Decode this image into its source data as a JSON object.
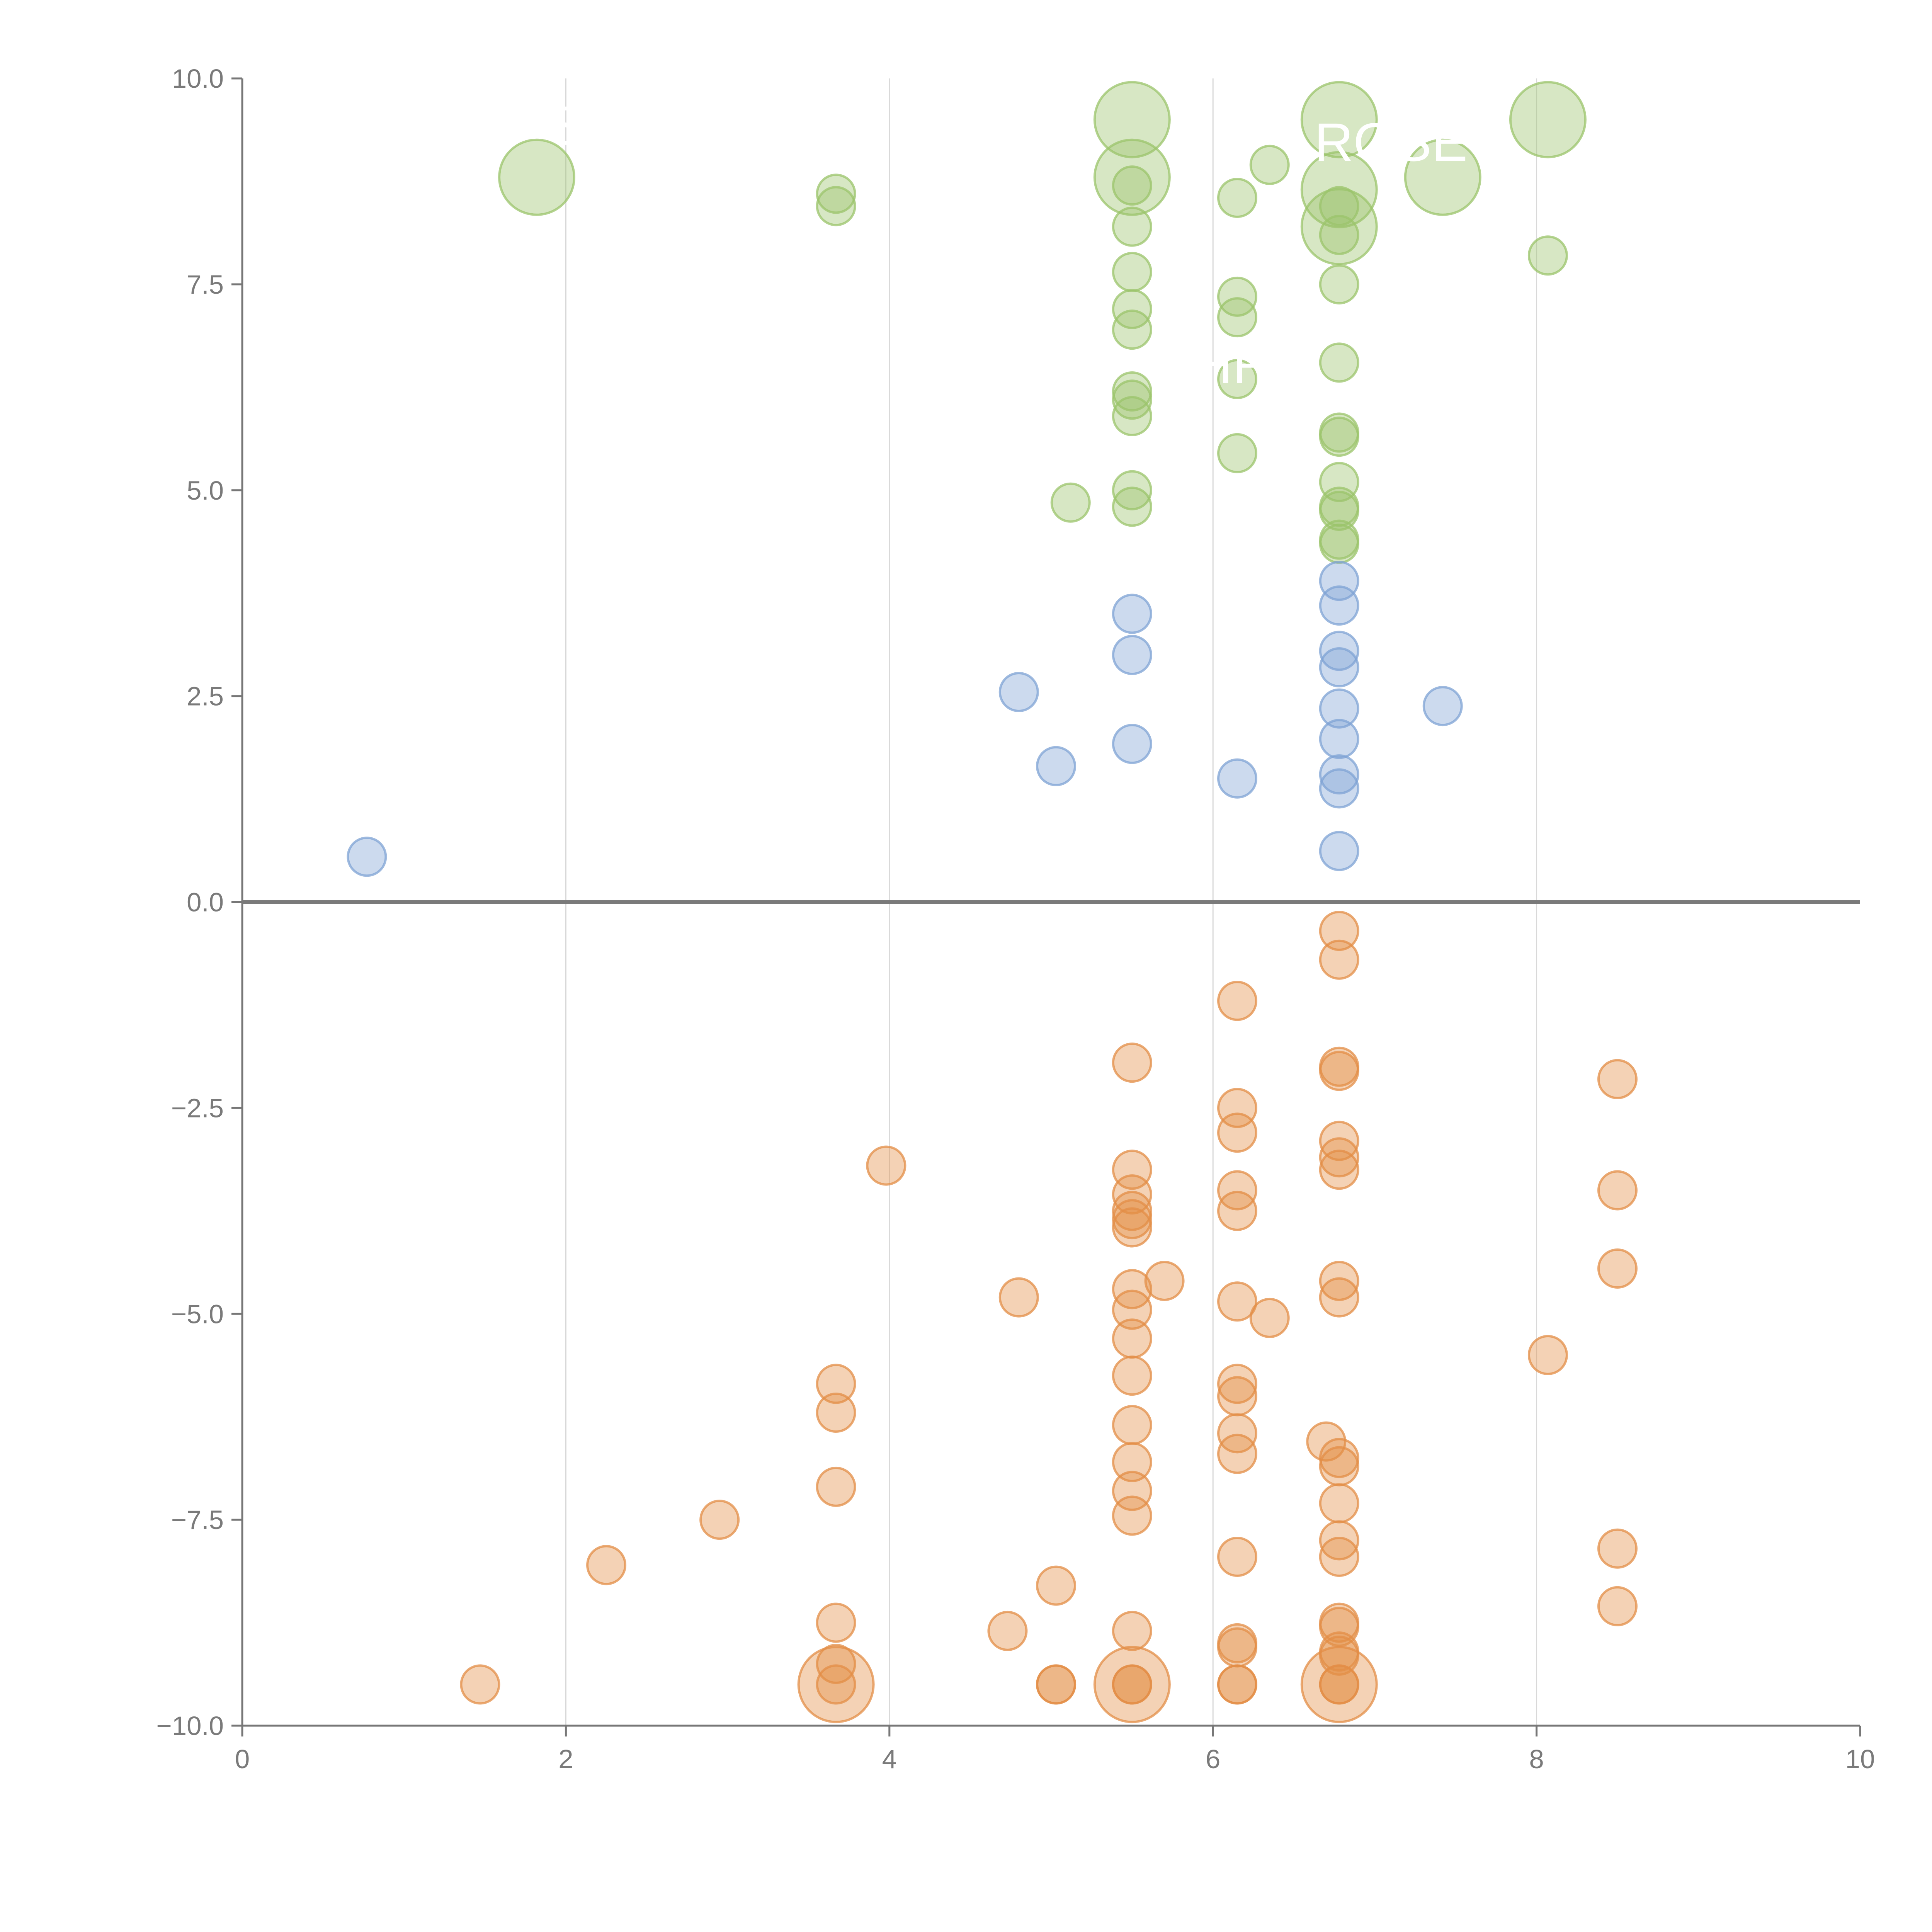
{
  "colors": {
    "green": "#9bc46b",
    "blue": "#7fa3d4",
    "orange": "#e38e47",
    "axis": "#777777",
    "grid": "#d9d9d9",
    "zero_line": "#7a7a7a",
    "tick_text": "#7a7a7a"
  },
  "chart_data": {
    "type": "scatter",
    "title": "",
    "xlabel": "",
    "ylabel": "",
    "xlim": [
      0,
      10
    ],
    "ylim": [
      -10,
      10
    ],
    "x_ticks": [
      "0",
      "2",
      "4",
      "6",
      "8",
      "10"
    ],
    "y_ticks": [
      "10.0",
      "7.5",
      "5.0",
      "2.5",
      "0.0",
      "−2.5",
      "−5.0",
      "−7.5",
      "−10.0"
    ],
    "x_grid": [
      2,
      4,
      6,
      8
    ],
    "overlay_labels": [
      {
        "text": "S",
        "x": 2.0,
        "y": 9.2
      },
      {
        "text": "ROSE",
        "x": 7.1,
        "y": 9.0
      },
      {
        "text": "CHR",
        "x": 6.0,
        "y": 6.3
      }
    ],
    "series": [
      {
        "name": "green",
        "color_key": "green",
        "points": [
          [
            1.82,
            8.8,
            2
          ],
          [
            3.67,
            8.6,
            1
          ],
          [
            3.67,
            8.45,
            1
          ],
          [
            5.5,
            9.5,
            2
          ],
          [
            5.5,
            8.8,
            2
          ],
          [
            5.5,
            8.7,
            1
          ],
          [
            5.5,
            8.2,
            1
          ],
          [
            5.5,
            7.65,
            1
          ],
          [
            5.5,
            7.2,
            1
          ],
          [
            5.5,
            6.95,
            1
          ],
          [
            5.5,
            6.2,
            1
          ],
          [
            5.5,
            6.1,
            1
          ],
          [
            5.5,
            5.9,
            1
          ],
          [
            5.5,
            5.0,
            1
          ],
          [
            5.5,
            4.8,
            1
          ],
          [
            5.12,
            4.85,
            1
          ],
          [
            6.15,
            8.55,
            1
          ],
          [
            6.15,
            7.35,
            1
          ],
          [
            6.15,
            7.1,
            1
          ],
          [
            6.15,
            6.35,
            1
          ],
          [
            6.15,
            5.45,
            1
          ],
          [
            6.35,
            8.95,
            1
          ],
          [
            6.78,
            9.5,
            2
          ],
          [
            6.78,
            8.65,
            2
          ],
          [
            6.78,
            8.45,
            1
          ],
          [
            6.78,
            8.2,
            2
          ],
          [
            6.78,
            8.1,
            1
          ],
          [
            6.78,
            7.5,
            1
          ],
          [
            6.78,
            6.55,
            1
          ],
          [
            6.78,
            5.7,
            1
          ],
          [
            6.78,
            5.65,
            1
          ],
          [
            6.78,
            5.1,
            1
          ],
          [
            6.78,
            4.8,
            1
          ],
          [
            6.78,
            4.75,
            1
          ],
          [
            6.78,
            4.4,
            1
          ],
          [
            6.78,
            4.35,
            1
          ],
          [
            7.42,
            8.8,
            2
          ],
          [
            8.07,
            9.5,
            2
          ],
          [
            8.07,
            7.85,
            1
          ]
        ]
      },
      {
        "name": "blue",
        "color_key": "blue",
        "points": [
          [
            0.77,
            0.55,
            1
          ],
          [
            4.8,
            2.55,
            1
          ],
          [
            5.03,
            1.65,
            1
          ],
          [
            5.5,
            3.5,
            1
          ],
          [
            5.5,
            3.0,
            1
          ],
          [
            5.5,
            1.92,
            1
          ],
          [
            6.15,
            1.5,
            1
          ],
          [
            6.78,
            3.9,
            1
          ],
          [
            6.78,
            3.6,
            1
          ],
          [
            6.78,
            3.05,
            1
          ],
          [
            6.78,
            2.85,
            1
          ],
          [
            6.78,
            2.35,
            1
          ],
          [
            6.78,
            1.98,
            1
          ],
          [
            6.78,
            1.55,
            1
          ],
          [
            6.78,
            1.38,
            1
          ],
          [
            6.78,
            0.62,
            1
          ],
          [
            7.42,
            2.38,
            1
          ]
        ]
      },
      {
        "name": "orange",
        "color_key": "orange",
        "points": [
          [
            1.47,
            -9.5,
            1
          ],
          [
            2.25,
            -8.05,
            1
          ],
          [
            2.95,
            -7.5,
            1
          ],
          [
            3.67,
            -5.85,
            1
          ],
          [
            3.67,
            -6.2,
            1
          ],
          [
            3.67,
            -7.1,
            1
          ],
          [
            3.67,
            -8.75,
            1
          ],
          [
            3.67,
            -9.25,
            1
          ],
          [
            3.67,
            -9.5,
            2
          ],
          [
            3.67,
            -9.5,
            1
          ],
          [
            3.98,
            -3.2,
            1
          ],
          [
            4.73,
            -8.85,
            1
          ],
          [
            4.8,
            -4.8,
            1
          ],
          [
            5.03,
            -8.3,
            1
          ],
          [
            5.03,
            -9.5,
            1
          ],
          [
            5.03,
            -9.5,
            1
          ],
          [
            5.5,
            -1.95,
            1
          ],
          [
            5.5,
            -3.25,
            1
          ],
          [
            5.5,
            -3.55,
            1
          ],
          [
            5.5,
            -3.75,
            1
          ],
          [
            5.5,
            -3.85,
            1
          ],
          [
            5.5,
            -3.95,
            1
          ],
          [
            5.5,
            -4.7,
            1
          ],
          [
            5.5,
            -4.95,
            1
          ],
          [
            5.5,
            -5.3,
            1
          ],
          [
            5.5,
            -5.75,
            1
          ],
          [
            5.5,
            -6.35,
            1
          ],
          [
            5.5,
            -6.8,
            1
          ],
          [
            5.5,
            -7.15,
            1
          ],
          [
            5.5,
            -7.45,
            1
          ],
          [
            5.5,
            -8.85,
            1
          ],
          [
            5.5,
            -9.5,
            2
          ],
          [
            5.5,
            -9.5,
            1
          ],
          [
            5.5,
            -9.5,
            1
          ],
          [
            5.7,
            -4.6,
            1
          ],
          [
            6.15,
            -1.2,
            1
          ],
          [
            6.15,
            -2.5,
            1
          ],
          [
            6.15,
            -2.8,
            1
          ],
          [
            6.15,
            -3.5,
            1
          ],
          [
            6.15,
            -3.75,
            1
          ],
          [
            6.15,
            -4.85,
            1
          ],
          [
            6.15,
            -5.85,
            1
          ],
          [
            6.15,
            -6.0,
            1
          ],
          [
            6.15,
            -6.45,
            1
          ],
          [
            6.15,
            -6.7,
            1
          ],
          [
            6.15,
            -7.95,
            1
          ],
          [
            6.15,
            -9.0,
            1
          ],
          [
            6.15,
            -9.05,
            1
          ],
          [
            6.15,
            -9.5,
            1
          ],
          [
            6.15,
            -9.5,
            1
          ],
          [
            6.35,
            -5.05,
            1
          ],
          [
            6.7,
            -6.55,
            1
          ],
          [
            6.78,
            -0.35,
            1
          ],
          [
            6.78,
            -0.7,
            1
          ],
          [
            6.78,
            -2.0,
            1
          ],
          [
            6.78,
            -2.05,
            1
          ],
          [
            6.78,
            -2.9,
            1
          ],
          [
            6.78,
            -3.1,
            1
          ],
          [
            6.78,
            -3.25,
            1
          ],
          [
            6.78,
            -4.6,
            1
          ],
          [
            6.78,
            -4.8,
            1
          ],
          [
            6.78,
            -6.75,
            1
          ],
          [
            6.78,
            -6.85,
            1
          ],
          [
            6.78,
            -7.3,
            1
          ],
          [
            6.78,
            -7.75,
            1
          ],
          [
            6.78,
            -7.95,
            1
          ],
          [
            6.78,
            -8.75,
            1
          ],
          [
            6.78,
            -8.8,
            1
          ],
          [
            6.78,
            -9.1,
            1
          ],
          [
            6.78,
            -9.15,
            1
          ],
          [
            6.78,
            -9.5,
            2
          ],
          [
            6.78,
            -9.5,
            1
          ],
          [
            6.78,
            -9.5,
            1
          ],
          [
            8.07,
            -5.5,
            1
          ],
          [
            8.5,
            -2.15,
            1
          ],
          [
            8.5,
            -3.5,
            1
          ],
          [
            8.5,
            -4.45,
            1
          ],
          [
            8.5,
            -7.85,
            1
          ],
          [
            8.5,
            -8.55,
            1
          ]
        ]
      }
    ]
  }
}
